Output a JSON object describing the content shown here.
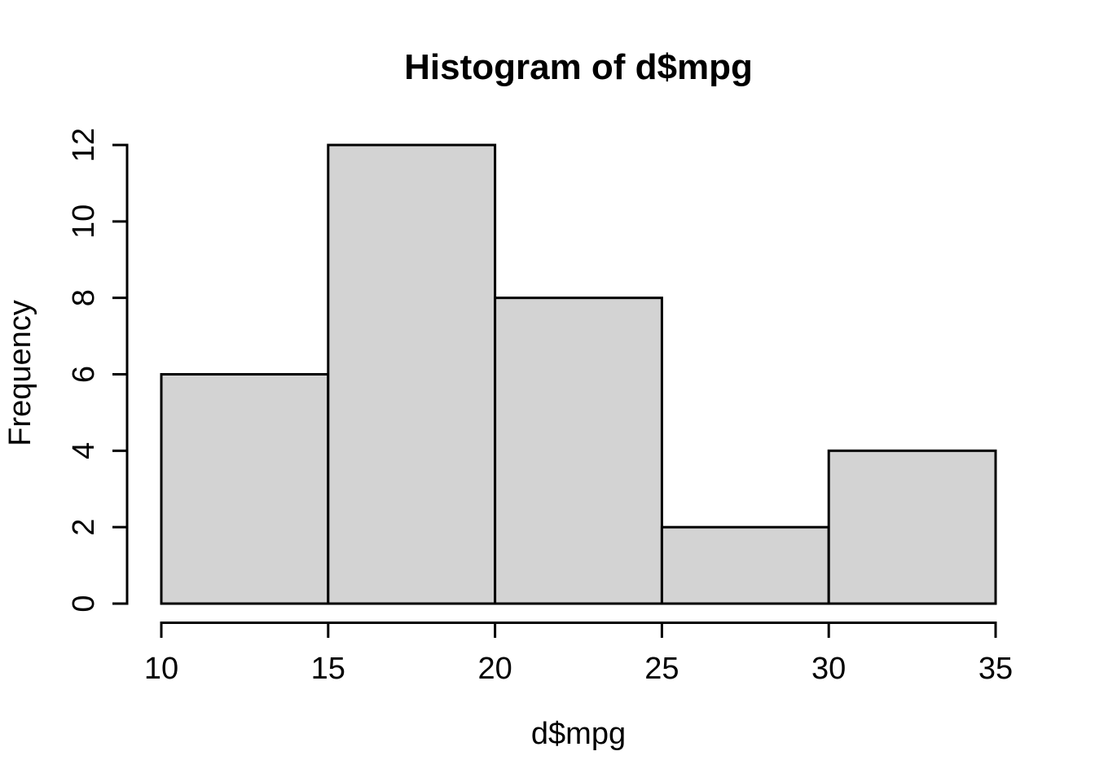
{
  "chart_data": {
    "type": "bar",
    "subtype": "histogram",
    "title": "Histogram of d$mpg",
    "xlabel": "d$mpg",
    "ylabel": "Frequency",
    "breaks": [
      10,
      15,
      20,
      25,
      30,
      35
    ],
    "counts": [
      6,
      12,
      8,
      2,
      4
    ],
    "bins": [
      {
        "range": [
          10,
          15
        ],
        "count": 6
      },
      {
        "range": [
          15,
          20
        ],
        "count": 12
      },
      {
        "range": [
          20,
          25
        ],
        "count": 8
      },
      {
        "range": [
          25,
          30
        ],
        "count": 2
      },
      {
        "range": [
          30,
          35
        ],
        "count": 4
      }
    ],
    "x_ticks": [
      10,
      15,
      20,
      25,
      30,
      35
    ],
    "y_ticks": [
      0,
      2,
      4,
      6,
      8,
      10,
      12
    ],
    "xlim": [
      10,
      35
    ],
    "ylim": [
      0,
      12
    ],
    "grid": false,
    "legend": null,
    "colors": {
      "bar_fill": "#d3d3d3",
      "bar_border": "#000000",
      "axis": "#000000",
      "text": "#000000",
      "background": "#ffffff"
    }
  }
}
